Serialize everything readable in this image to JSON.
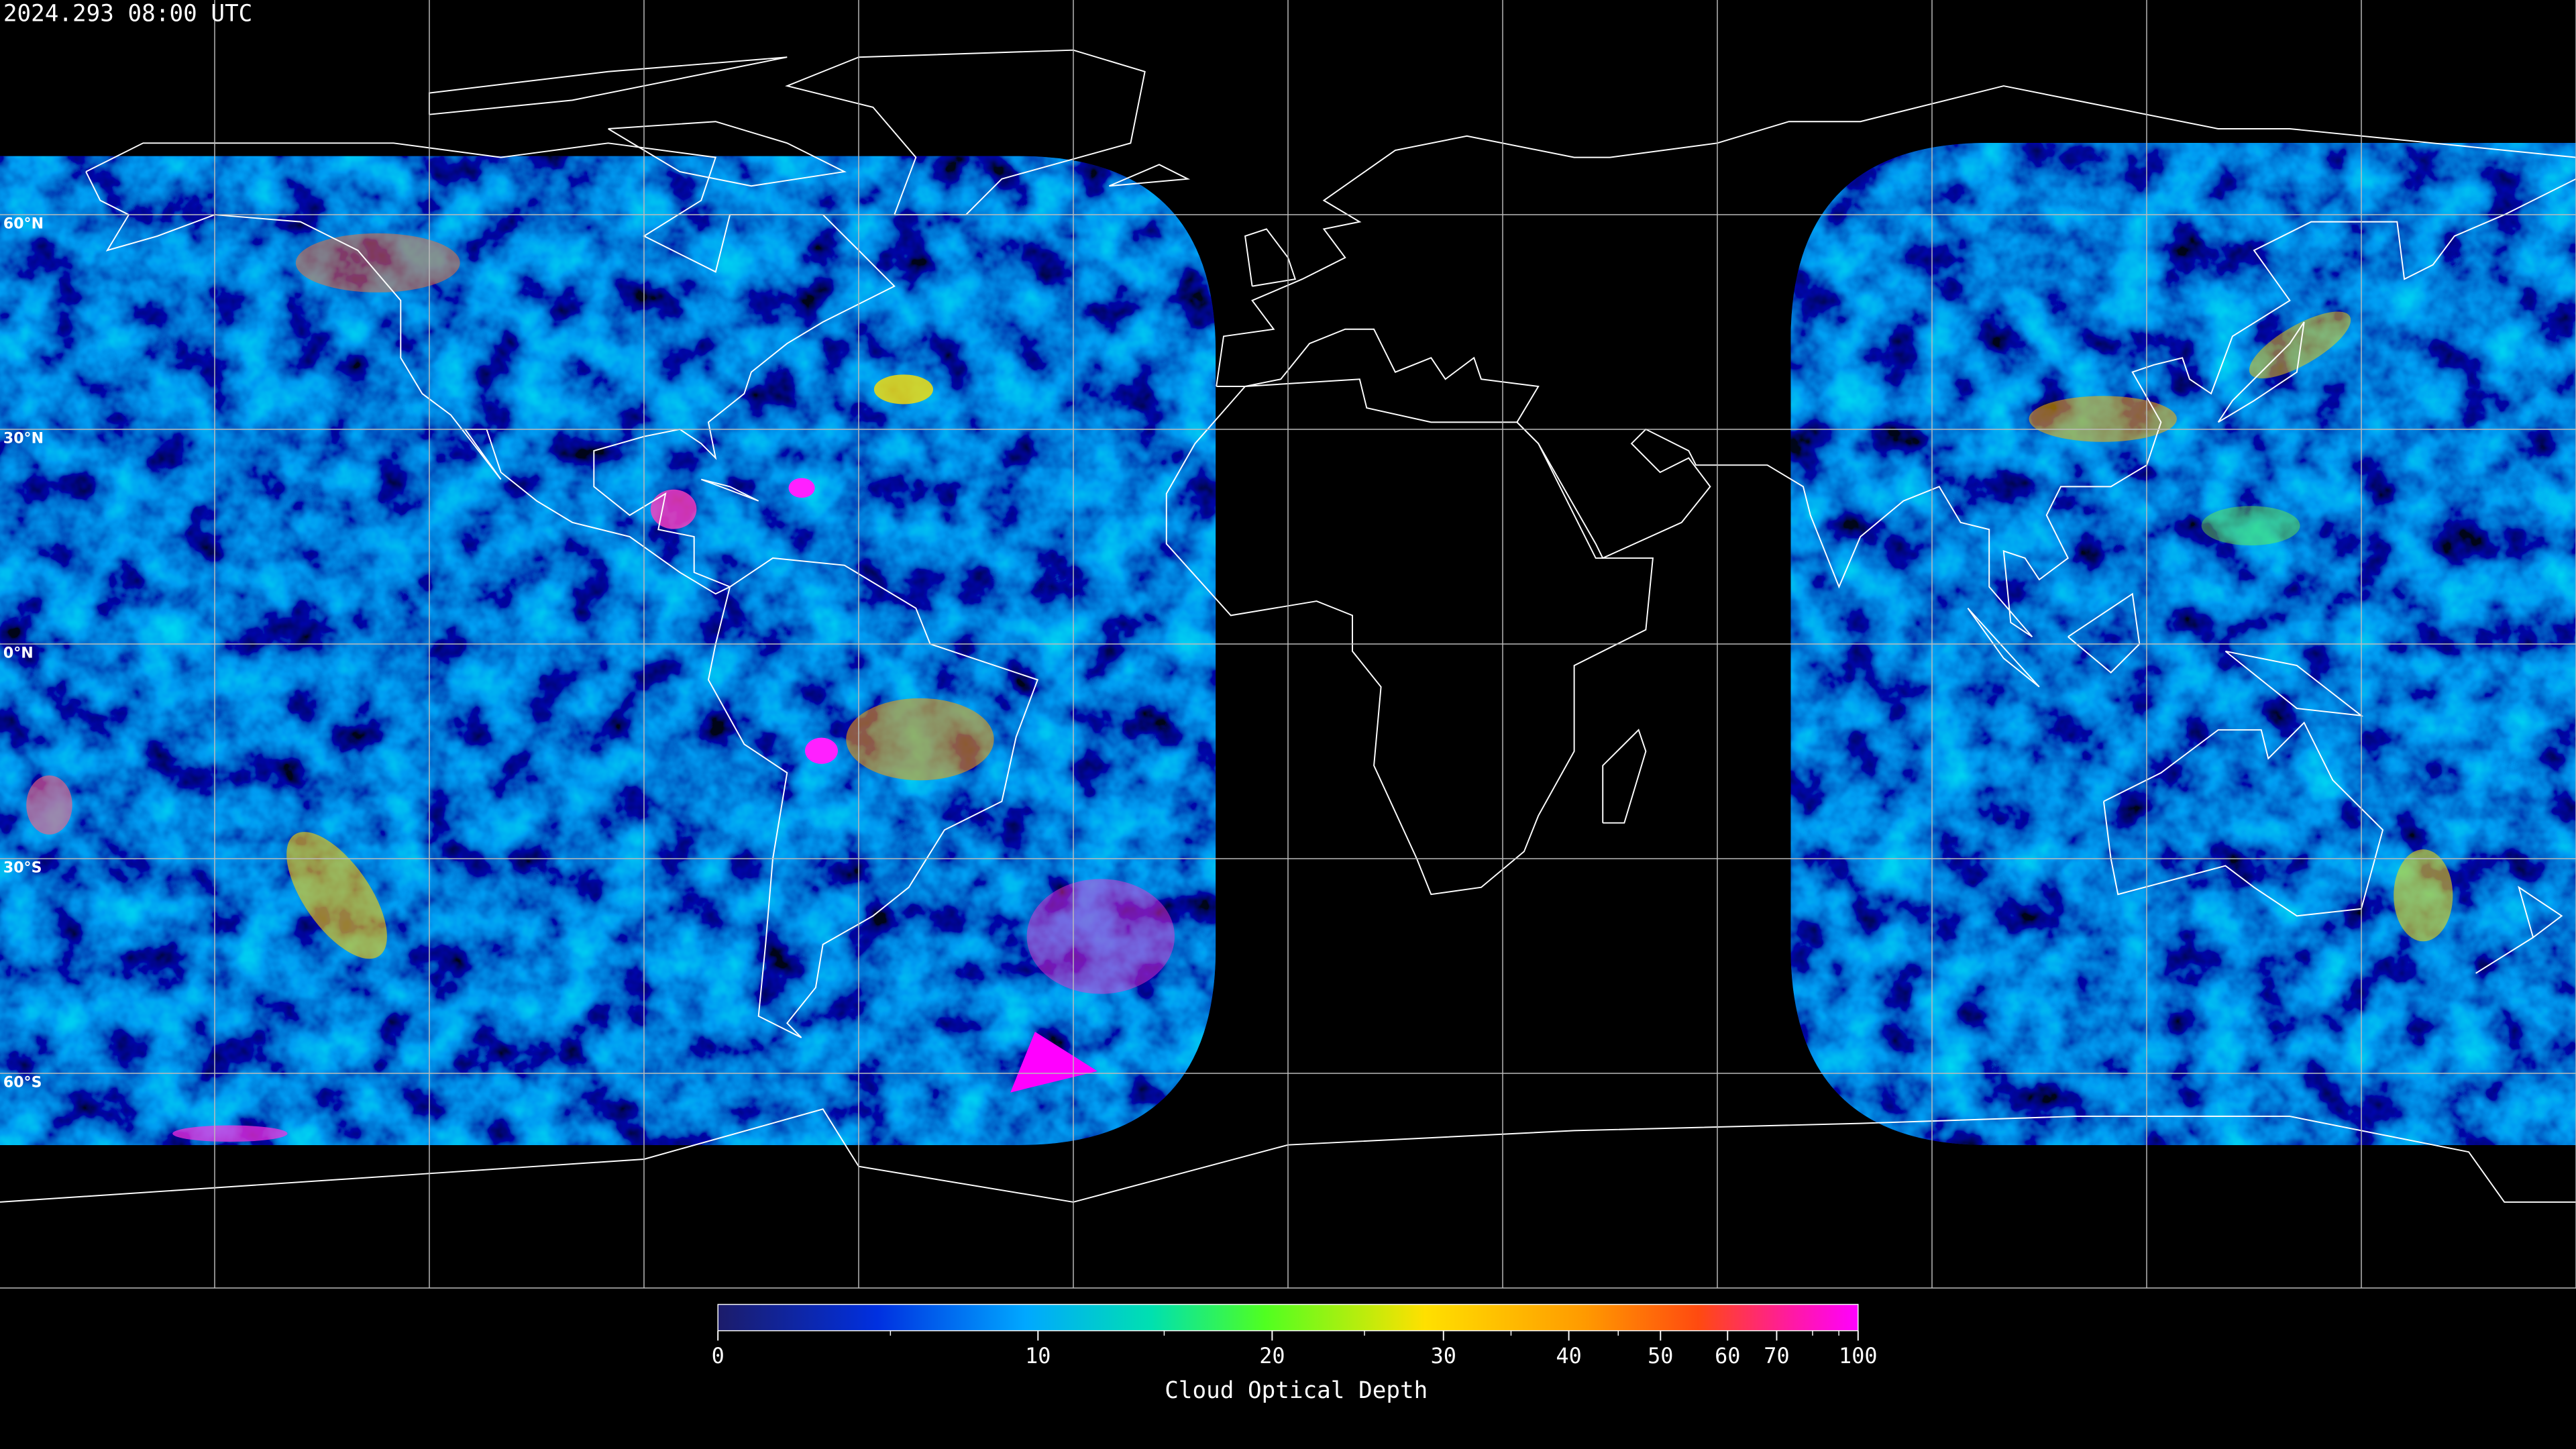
{
  "title": "2024.293 08:00 UTC",
  "latitude_labels": [
    "60°N",
    "30°N",
    "0°N",
    "30°S",
    "60°S"
  ],
  "colorbar": {
    "label": "Cloud Optical Depth",
    "lim": [
      0,
      100
    ],
    "ticks": [
      0,
      10,
      20,
      30,
      40,
      50,
      60,
      70,
      100
    ],
    "minor_ticks": [
      5,
      15,
      25,
      35,
      45,
      80,
      90
    ]
  }
}
